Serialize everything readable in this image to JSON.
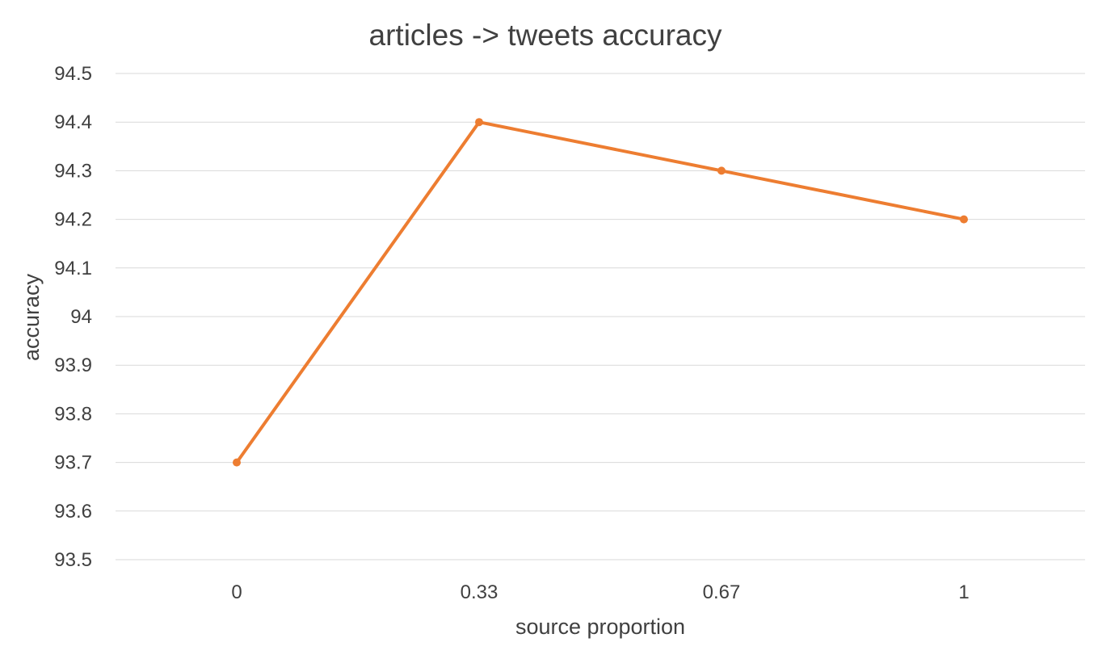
{
  "chart_data": {
    "type": "line",
    "title": "articles -> tweets accuracy",
    "xlabel": "source proportion",
    "ylabel": "accuracy",
    "categories": [
      "0",
      "0.33",
      "0.67",
      "1"
    ],
    "series": [
      {
        "values": [
          93.7,
          94.4,
          94.3,
          94.2
        ]
      }
    ],
    "ylim": [
      93.5,
      94.5
    ],
    "yticks": [
      "93.5",
      "93.6",
      "93.7",
      "93.8",
      "93.9",
      "94",
      "94.1",
      "94.2",
      "94.3",
      "94.4",
      "94.5"
    ],
    "grid": true,
    "legend": "none",
    "colors": {
      "series": "#ed7d31",
      "grid": "#d9d9d9",
      "text": "#404040"
    }
  }
}
